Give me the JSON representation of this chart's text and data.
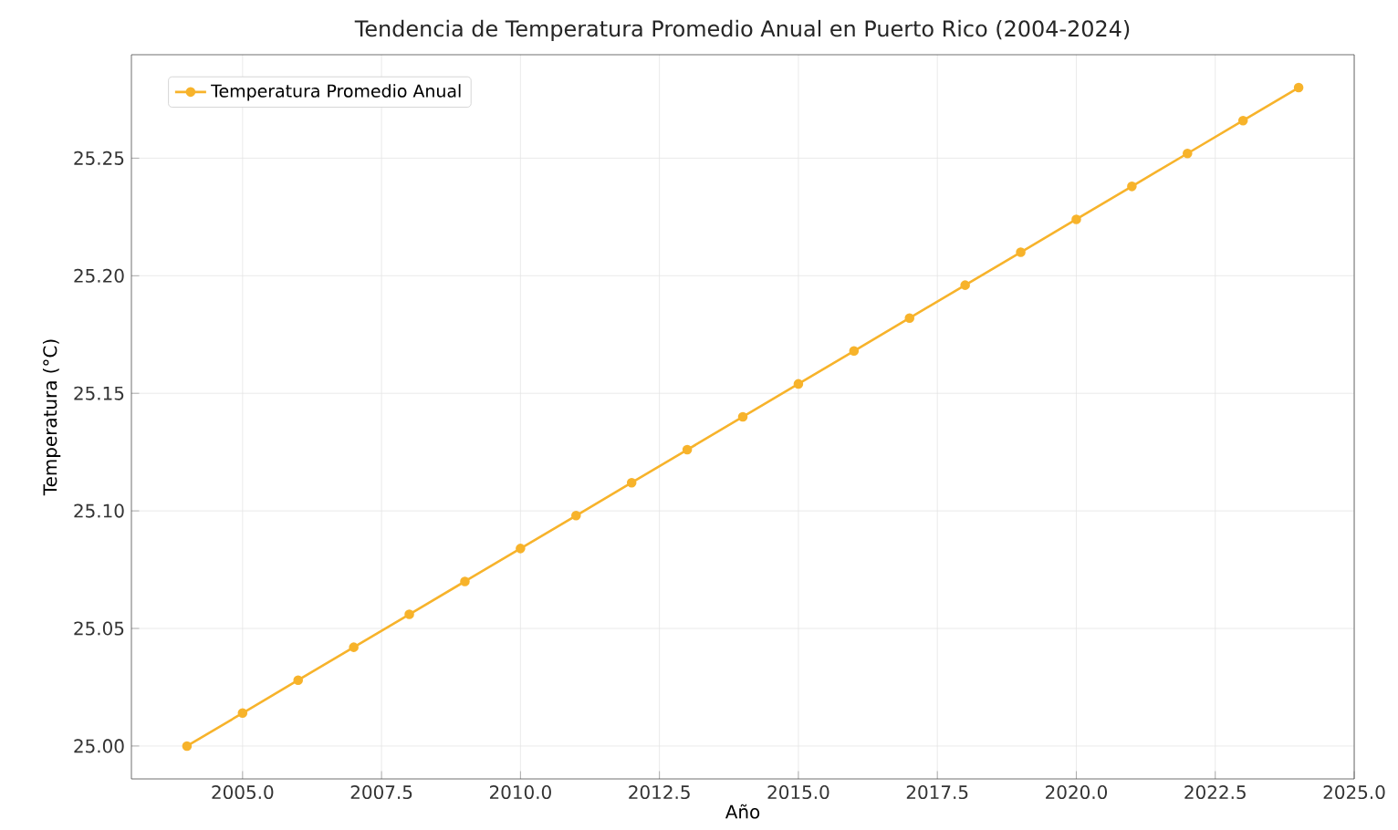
{
  "chart_data": {
    "type": "line",
    "title": "Tendencia de Temperatura Promedio Anual en Puerto Rico (2004-2024)",
    "xlabel": "Año",
    "ylabel": "Temperatura (°C)",
    "x": [
      2004,
      2005,
      2006,
      2007,
      2008,
      2009,
      2010,
      2011,
      2012,
      2013,
      2014,
      2015,
      2016,
      2017,
      2018,
      2019,
      2020,
      2021,
      2022,
      2023,
      2024
    ],
    "series": [
      {
        "name": "Temperatura Promedio Anual",
        "color": "#f7b32b",
        "values": [
          25.0,
          25.014,
          25.028,
          25.042,
          25.056,
          25.07,
          25.084,
          25.098,
          25.112,
          25.126,
          25.14,
          25.154,
          25.168,
          25.182,
          25.196,
          25.21,
          25.224,
          25.238,
          25.252,
          25.266,
          25.28
        ]
      }
    ],
    "xlim": [
      2003,
      2025
    ],
    "ylim": [
      24.986,
      25.294
    ],
    "xticks": [
      {
        "value": 2005,
        "label": "2005.0"
      },
      {
        "value": 2007.5,
        "label": "2007.5"
      },
      {
        "value": 2010,
        "label": "2010.0"
      },
      {
        "value": 2012.5,
        "label": "2012.5"
      },
      {
        "value": 2015,
        "label": "2015.0"
      },
      {
        "value": 2017.5,
        "label": "2017.5"
      },
      {
        "value": 2020,
        "label": "2020.0"
      },
      {
        "value": 2022.5,
        "label": "2022.5"
      },
      {
        "value": 2025,
        "label": "2025.0"
      }
    ],
    "yticks": [
      {
        "value": 25.0,
        "label": "25.00"
      },
      {
        "value": 25.05,
        "label": "25.05"
      },
      {
        "value": 25.1,
        "label": "25.10"
      },
      {
        "value": 25.15,
        "label": "25.15"
      },
      {
        "value": 25.2,
        "label": "25.20"
      },
      {
        "value": 25.25,
        "label": "25.25"
      }
    ],
    "grid": true,
    "legend": "top left",
    "marker": "circle",
    "line_style": "solid"
  }
}
